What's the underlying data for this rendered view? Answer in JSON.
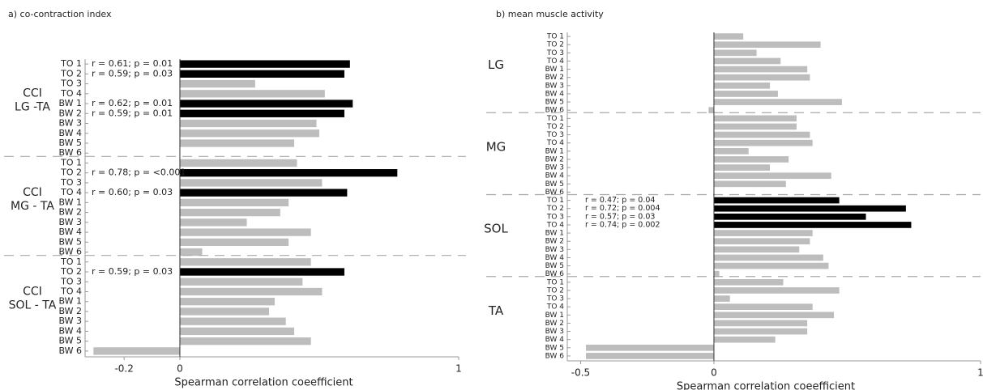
{
  "chart_data": [
    {
      "type": "bar",
      "title": "a) co-contraction index",
      "xlabel": "Spearman correlation coeefficient",
      "xlim": [
        -0.34,
        1
      ],
      "xticks": [
        -0.2,
        0,
        1
      ],
      "color": "#bdbdbd",
      "highlight_color": "#000000",
      "categories": [
        "TO 1",
        "TO 2",
        "TO 3",
        "TO 4",
        "BW 1",
        "BW 2",
        "BW 3",
        "BW 4",
        "BW 5",
        "BW 6"
      ],
      "groups": [
        {
          "label": [
            "CCI",
            "LG -TA"
          ],
          "values": [
            0.61,
            0.59,
            0.27,
            0.52,
            0.62,
            0.59,
            0.49,
            0.5,
            0.41,
            0
          ],
          "value_labels": [
            "r = 0.61; p = 0.01",
            "r = 0.59; p = 0.03",
            null,
            null,
            "r = 0.62; p = 0.01",
            "r = 0.59; p = 0.01",
            null,
            null,
            null,
            null
          ]
        },
        {
          "label": [
            "CCI",
            "MG - TA"
          ],
          "values": [
            0.42,
            0.78,
            0.51,
            0.6,
            0.39,
            0.36,
            0.24,
            0.47,
            0.39,
            0.08
          ],
          "value_labels": [
            null,
            "r = 0.78; p = <0.001",
            null,
            "r = 0.60; p = 0.03",
            null,
            null,
            null,
            null,
            null,
            null
          ]
        },
        {
          "label": [
            "CCI",
            "SOL - TA"
          ],
          "values": [
            0.47,
            0.59,
            0.44,
            0.51,
            0.34,
            0.32,
            0.38,
            0.41,
            0.47,
            -0.31
          ],
          "value_labels": [
            null,
            "r = 0.59; p = 0.03",
            null,
            null,
            null,
            null,
            null,
            null,
            null,
            null
          ]
        }
      ]
    },
    {
      "type": "bar",
      "title": "b) mean muscle activity",
      "xlabel": "Spearman correlation coeefficient",
      "xlim": [
        -0.55,
        1
      ],
      "xticks": [
        -0.5,
        0,
        1
      ],
      "color": "#bdbdbd",
      "highlight_color": "#000000",
      "categories": [
        "TO 1",
        "TO 2",
        "TO 3",
        "TO 4",
        "BW 1",
        "BW 2",
        "BW 3",
        "BW 4",
        "BW 5",
        "BW 6"
      ],
      "groups": [
        {
          "label": [
            "LG"
          ],
          "values": [
            0.11,
            0.4,
            0.16,
            0.25,
            0.35,
            0.36,
            0.21,
            0.24,
            0.48,
            -0.02
          ],
          "value_labels": [
            null,
            null,
            null,
            null,
            null,
            null,
            null,
            null,
            null,
            null
          ]
        },
        {
          "label": [
            "MG"
          ],
          "values": [
            0.31,
            0.31,
            0.36,
            0.37,
            0.13,
            0.28,
            0.21,
            0.44,
            0.27,
            0
          ],
          "value_labels": [
            null,
            null,
            null,
            null,
            null,
            null,
            null,
            null,
            null,
            null
          ]
        },
        {
          "label": [
            "SOL"
          ],
          "values": [
            0.47,
            0.72,
            0.57,
            0.74,
            0.37,
            0.36,
            0.32,
            0.41,
            0.43,
            0.02
          ],
          "value_labels": [
            "r = 0.47; p = 0.04",
            "r = 0.72; p = 0.004",
            "r = 0.57; p = 0.03",
            "r = 0.74; p = 0.002",
            null,
            null,
            null,
            null,
            null,
            null
          ]
        },
        {
          "label": [
            "TA"
          ],
          "values": [
            0.26,
            0.47,
            0.06,
            0.37,
            0.45,
            0.35,
            0.35,
            0.23,
            -0.48,
            -0.48
          ],
          "value_labels": [
            null,
            null,
            null,
            null,
            null,
            null,
            null,
            null,
            null,
            null
          ]
        }
      ]
    }
  ]
}
